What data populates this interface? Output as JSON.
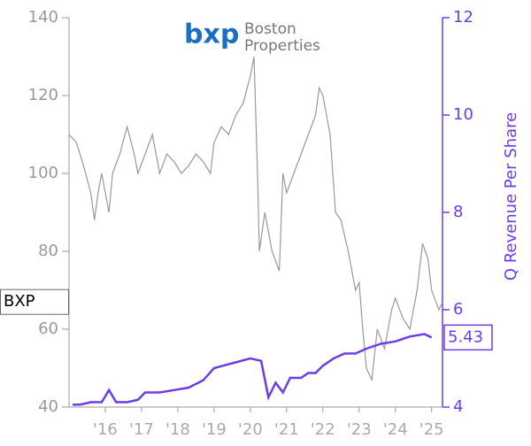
{
  "chart_data": {
    "type": "line",
    "logo": {
      "mark": "bxp",
      "name_lines": [
        "Boston",
        "Properties"
      ]
    },
    "y2_label": "Q Revenue Per Share",
    "xlim": [
      2015.0,
      2025.3
    ],
    "xticks": [
      {
        "value": 2016,
        "label": "'16"
      },
      {
        "value": 2017,
        "label": "'17"
      },
      {
        "value": 2018,
        "label": "'18"
      },
      {
        "value": 2019,
        "label": "'19"
      },
      {
        "value": 2020,
        "label": "'20"
      },
      {
        "value": 2021,
        "label": "'21"
      },
      {
        "value": 2022,
        "label": "'22"
      },
      {
        "value": 2023,
        "label": "'23"
      },
      {
        "value": 2024,
        "label": "'24"
      },
      {
        "value": 2025,
        "label": "'25"
      }
    ],
    "ylim": [
      40,
      140
    ],
    "yticks": [
      40,
      60,
      80,
      100,
      120,
      140
    ],
    "y2lim": [
      4,
      12
    ],
    "y2ticks": [
      4,
      6,
      8,
      10,
      12
    ],
    "series": [
      {
        "name": "BXP",
        "color": "#999999",
        "x": [
          2015.0,
          2015.2,
          2015.4,
          2015.6,
          2015.7,
          2015.8,
          2015.9,
          2016.1,
          2016.2,
          2016.4,
          2016.6,
          2016.8,
          2016.9,
          2017.1,
          2017.3,
          2017.5,
          2017.7,
          2017.9,
          2018.1,
          2018.3,
          2018.5,
          2018.7,
          2018.9,
          2019.0,
          2019.2,
          2019.4,
          2019.6,
          2019.8,
          2020.0,
          2020.1,
          2020.2,
          2020.25,
          2020.4,
          2020.6,
          2020.8,
          2020.9,
          2021.0,
          2021.2,
          2021.4,
          2021.6,
          2021.8,
          2021.9,
          2022.0,
          2022.2,
          2022.35,
          2022.5,
          2022.7,
          2022.9,
          2023.0,
          2023.1,
          2023.2,
          2023.35,
          2023.5,
          2023.7,
          2023.9,
          2024.0,
          2024.2,
          2024.4,
          2024.6,
          2024.75,
          2024.9,
          2025.0,
          2025.2,
          2025.3
        ],
        "values": [
          110,
          108,
          102,
          95,
          88,
          95,
          100,
          90,
          100,
          105,
          112,
          105,
          100,
          105,
          110,
          100,
          105,
          103,
          100,
          102,
          105,
          103,
          100,
          108,
          112,
          110,
          115,
          118,
          125,
          130,
          100,
          80,
          90,
          80,
          75,
          100,
          95,
          100,
          105,
          110,
          115,
          122,
          120,
          110,
          90,
          88,
          80,
          70,
          72,
          60,
          50,
          47,
          60,
          55,
          65,
          68,
          63,
          60,
          70,
          82,
          78,
          70,
          65,
          67
        ]
      },
      {
        "name": "Q Revenue Per Share",
        "color": "#6a3de8",
        "axis": "y2",
        "x": [
          2015.1,
          2015.3,
          2015.6,
          2015.9,
          2016.1,
          2016.3,
          2016.6,
          2016.9,
          2017.1,
          2017.5,
          2017.9,
          2018.3,
          2018.7,
          2019.0,
          2019.5,
          2020.0,
          2020.3,
          2020.5,
          2020.7,
          2020.9,
          2021.1,
          2021.4,
          2021.6,
          2021.8,
          2022.0,
          2022.3,
          2022.6,
          2022.9,
          2023.2,
          2023.6,
          2024.0,
          2024.4,
          2024.8,
          2025.0
        ],
        "values": [
          4.05,
          4.05,
          4.1,
          4.1,
          4.35,
          4.1,
          4.1,
          4.15,
          4.3,
          4.3,
          4.35,
          4.4,
          4.55,
          4.8,
          4.9,
          5.0,
          4.95,
          4.2,
          4.5,
          4.3,
          4.6,
          4.6,
          4.7,
          4.7,
          4.85,
          5.0,
          5.1,
          5.1,
          5.2,
          5.3,
          5.35,
          5.45,
          5.5,
          5.43
        ]
      }
    ]
  }
}
